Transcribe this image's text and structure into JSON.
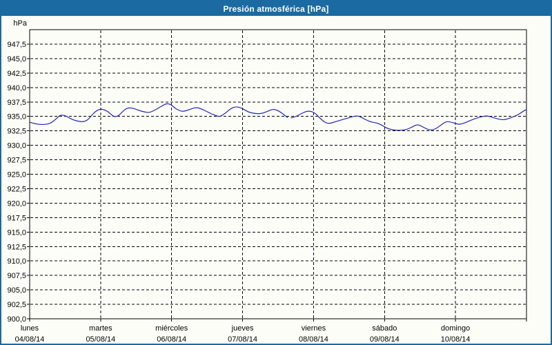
{
  "window": {
    "title": "Presión atmosférica [hPa]"
  },
  "colors": {
    "titlebar_bg": "#1b6aa2",
    "titlebar_text": "#ffffff",
    "frame_border": "#1b6aa2",
    "background": "#fdfdf8",
    "grid": "#000000",
    "axis": "#000000",
    "label_text": "#000000",
    "series_line": "#2323b8"
  },
  "chart_data": {
    "type": "line",
    "title": "Presión atmosférica [hPa]",
    "legend": "none",
    "grid": "dashed",
    "y_axis": {
      "unit_label": "hPa",
      "min": 900,
      "max": 950,
      "tick_step": 2.5,
      "tick_labels": [
        "947,5",
        "945,0",
        "942,5",
        "940,0",
        "937,5",
        "935,0",
        "932,5",
        "930,0",
        "927,5",
        "925,0",
        "922,5",
        "920,0",
        "917,5",
        "915,0",
        "912,5",
        "910,0",
        "907,5",
        "905,0",
        "902,5",
        "900,0"
      ]
    },
    "x_axis": {
      "span_hours": 168,
      "days": [
        {
          "name": "lunes",
          "date": "04/08/14"
        },
        {
          "name": "martes",
          "date": "05/08/14"
        },
        {
          "name": "miércoles",
          "date": "06/08/14"
        },
        {
          "name": "jueves",
          "date": "07/08/14"
        },
        {
          "name": "viernes",
          "date": "08/08/14"
        },
        {
          "name": "sábado",
          "date": "09/08/14"
        },
        {
          "name": "domingo",
          "date": "10/08/14"
        }
      ]
    },
    "series": [
      {
        "name": "Presión atmosférica",
        "unit": "hPa",
        "points_hours_hpa": [
          [
            0,
            934.0
          ],
          [
            1.6,
            933.75
          ],
          [
            3.5,
            933.6
          ],
          [
            5.4,
            933.6
          ],
          [
            7,
            933.8
          ],
          [
            8.6,
            934.4
          ],
          [
            10,
            935.1
          ],
          [
            10.8,
            935.25
          ],
          [
            12.2,
            935.1
          ],
          [
            13.5,
            934.7
          ],
          [
            15,
            934.35
          ],
          [
            16.6,
            934.15
          ],
          [
            18,
            934.05
          ],
          [
            19.6,
            934.35
          ],
          [
            21,
            935.2
          ],
          [
            22.4,
            935.95
          ],
          [
            24,
            936.3
          ],
          [
            25.2,
            936.15
          ],
          [
            26.6,
            935.8
          ],
          [
            27.8,
            935.2
          ],
          [
            29,
            934.9
          ],
          [
            30.2,
            935.15
          ],
          [
            31.3,
            935.8
          ],
          [
            32.5,
            936.3
          ],
          [
            33.6,
            936.5
          ],
          [
            35.2,
            936.4
          ],
          [
            37.1,
            936.0
          ],
          [
            39,
            935.75
          ],
          [
            40.4,
            935.65
          ],
          [
            41.8,
            935.95
          ],
          [
            43.4,
            936.4
          ],
          [
            45,
            936.9
          ],
          [
            46.4,
            937.25
          ],
          [
            47.8,
            937.05
          ],
          [
            49.2,
            936.4
          ],
          [
            50.6,
            936.0
          ],
          [
            51.8,
            935.85
          ],
          [
            53.4,
            936.05
          ],
          [
            55.1,
            936.4
          ],
          [
            56.5,
            936.55
          ],
          [
            58.1,
            936.3
          ],
          [
            59.7,
            935.9
          ],
          [
            61.6,
            935.4
          ],
          [
            63.2,
            935.1
          ],
          [
            64.4,
            934.95
          ],
          [
            66.3,
            935.6
          ],
          [
            68.1,
            936.4
          ],
          [
            69.8,
            936.7
          ],
          [
            71.4,
            936.5
          ],
          [
            72.8,
            936.1
          ],
          [
            74,
            935.75
          ],
          [
            75.6,
            935.55
          ],
          [
            77.4,
            935.45
          ],
          [
            78.8,
            935.55
          ],
          [
            80.3,
            935.85
          ],
          [
            82.1,
            936.25
          ],
          [
            83.3,
            936.15
          ],
          [
            84.7,
            935.8
          ],
          [
            86,
            935.3
          ],
          [
            87.2,
            934.8
          ],
          null,
          [
            88.4,
            934.75
          ],
          [
            89.8,
            934.9
          ],
          [
            91.4,
            935.35
          ],
          [
            93.1,
            935.8
          ],
          [
            94.5,
            935.95
          ],
          [
            95.9,
            935.75
          ],
          [
            97.1,
            935.3
          ],
          [
            98.5,
            934.5
          ],
          [
            100.1,
            933.9
          ],
          [
            101.3,
            933.75
          ],
          [
            102.9,
            934.0
          ],
          [
            104.8,
            934.3
          ],
          [
            106.4,
            934.55
          ],
          [
            108.3,
            934.8
          ],
          [
            109.9,
            935.05
          ],
          [
            111.1,
            935.1
          ],
          [
            112.7,
            934.7
          ],
          [
            114.1,
            934.3
          ],
          [
            115.7,
            934.0
          ],
          [
            117.6,
            933.85
          ],
          [
            119,
            933.5
          ],
          [
            120,
            933.2
          ],
          [
            121.1,
            932.9
          ],
          [
            122.5,
            932.7
          ],
          [
            123.9,
            932.6
          ],
          [
            125.8,
            932.6
          ],
          [
            127.6,
            932.75
          ],
          [
            129.3,
            933.15
          ],
          [
            130.9,
            933.6
          ],
          [
            132.3,
            933.4
          ],
          [
            133.9,
            932.9
          ],
          [
            135.6,
            932.6
          ],
          [
            137.4,
            932.85
          ],
          [
            139.3,
            933.6
          ],
          [
            140.9,
            934.15
          ],
          [
            142.6,
            934.0
          ],
          [
            144,
            933.8
          ],
          [
            145.1,
            933.6
          ],
          [
            146.8,
            933.8
          ],
          [
            148.6,
            934.2
          ],
          [
            150.5,
            934.6
          ],
          [
            152.4,
            934.9
          ],
          [
            154.2,
            935.1
          ],
          [
            155.6,
            935.0
          ],
          [
            157.3,
            934.7
          ],
          [
            158.9,
            934.5
          ],
          [
            160.3,
            934.4
          ],
          [
            161.9,
            934.6
          ],
          [
            163.6,
            934.95
          ],
          [
            165.2,
            935.3
          ],
          [
            166.6,
            935.8
          ],
          [
            168,
            936.2
          ]
        ]
      }
    ]
  }
}
